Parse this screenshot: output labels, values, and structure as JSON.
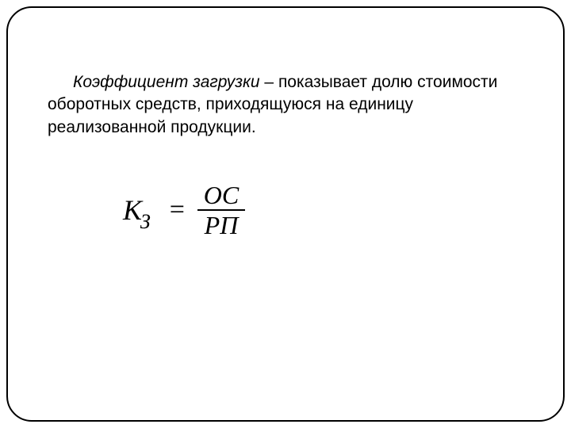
{
  "document": {
    "frame": {
      "border_color": "#000000",
      "border_width": 2,
      "border_radius": 32,
      "background": "#ffffff"
    },
    "paragraph": {
      "term": "Коэффициент загрузки",
      "dash": " – ",
      "body": "показывает долю стоимости оборотных средств, приходящуюся на единицу реализованной продукции.",
      "font_size": 21,
      "text_color": "#000000",
      "term_style": "italic",
      "text_indent": 32
    },
    "formula": {
      "lhs_main": "К",
      "lhs_subscript": "З",
      "equals": "=",
      "numerator": "ОС",
      "denominator": "РП",
      "font_family": "Times New Roman",
      "font_style": "italic",
      "font_size": 34,
      "line_color": "#000000",
      "line_width": 2
    }
  }
}
